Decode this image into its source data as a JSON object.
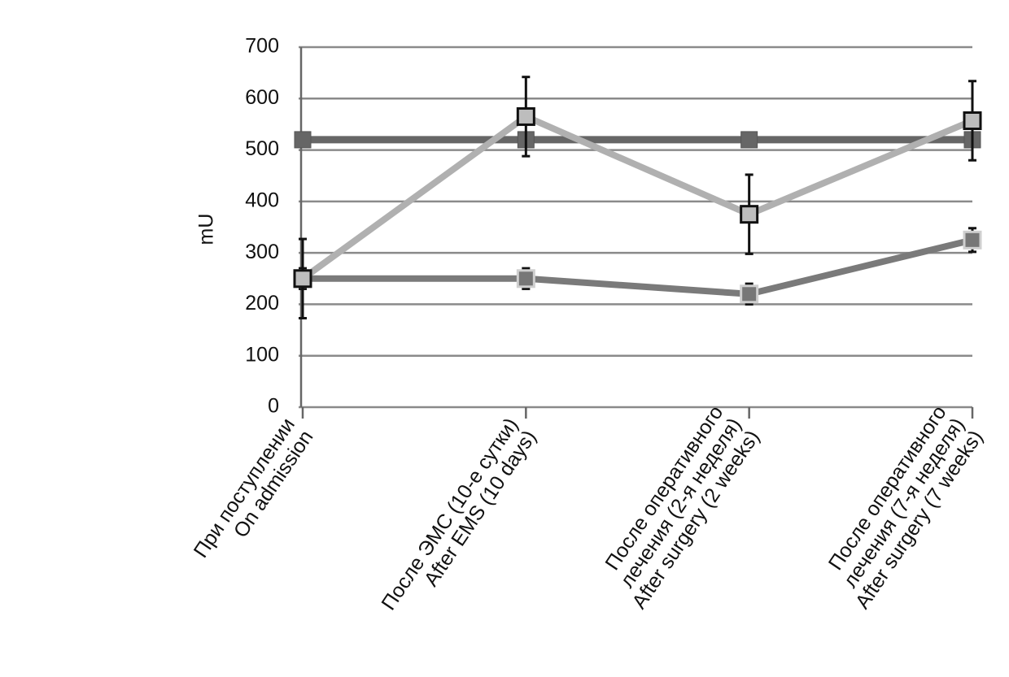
{
  "chart_data": {
    "type": "line",
    "y_label": "mU",
    "categories": [
      [
        "При поступлении",
        "On admission"
      ],
      [
        "После ЭМС (10-е сутки)",
        "After EMS (10 days)"
      ],
      [
        "После оперативного",
        "лечения (2-я неделя)",
        "After surgery (2 weeks)"
      ],
      [
        "После оперативного",
        "лечения (7-я неделя)",
        "After surgery (7 weeks)"
      ]
    ],
    "series": [
      {
        "color": "#666666",
        "values": [
          520,
          520,
          520,
          520
        ]
      },
      {
        "color": "#7a7a7a",
        "values": [
          250,
          250,
          220,
          325
        ],
        "errors": [
          20,
          20,
          20,
          23
        ]
      },
      {
        "color": "#b0b0b0",
        "values": [
          250,
          565,
          375,
          557
        ],
        "errors": [
          77,
          77,
          77,
          77
        ]
      }
    ],
    "ylim": [
      0,
      700
    ],
    "yticks": [
      0,
      100,
      200,
      300,
      400,
      500,
      600,
      700
    ],
    "grid": true
  }
}
